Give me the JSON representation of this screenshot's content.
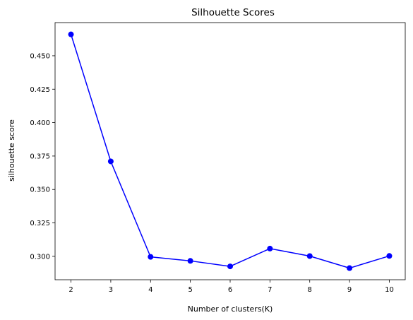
{
  "chart_data": {
    "type": "line",
    "title": "Silhouette Scores",
    "xlabel": "Number of clusters(K)",
    "ylabel": "silhouette score",
    "x": [
      2,
      3,
      4,
      5,
      6,
      7,
      8,
      9,
      10
    ],
    "series": [
      {
        "values": [
          0.466,
          0.371,
          0.2996,
          0.2966,
          0.2925,
          0.3058,
          0.3002,
          0.2912,
          0.3003
        ],
        "color": "#0000ff",
        "marker": "circle"
      }
    ],
    "xticks": [
      "2",
      "3",
      "4",
      "5",
      "6",
      "7",
      "8",
      "9",
      "10"
    ],
    "yticks": [
      "0.300",
      "0.325",
      "0.350",
      "0.375",
      "0.400",
      "0.425",
      "0.450"
    ],
    "xlim": [
      1.6,
      10.4
    ],
    "ylim": [
      0.2825,
      0.4748
    ],
    "grid": false
  }
}
